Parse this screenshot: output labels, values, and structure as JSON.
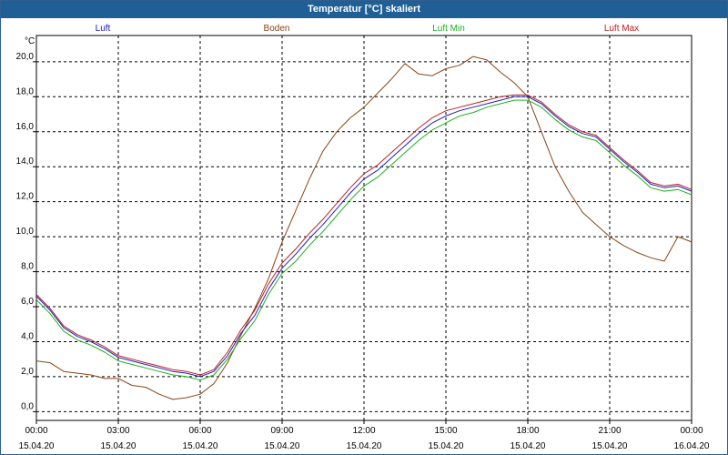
{
  "window": {
    "title": "Temperatur [°C] skaliert"
  },
  "chart_data": {
    "type": "line",
    "title": "Temperatur [°C] skaliert",
    "ylabel": "°C",
    "xlabel": "",
    "ylim": [
      -0.5,
      21.5
    ],
    "yticks": [
      0,
      2,
      4,
      6,
      8,
      10,
      12,
      14,
      16,
      18,
      20
    ],
    "ytick_labels": [
      "0,0",
      "2,0",
      "4,0",
      "6,0",
      "8,0",
      "10,0",
      "12,0",
      "14,0",
      "16,0",
      "18,0",
      "20,0"
    ],
    "xlim": [
      0,
      24
    ],
    "xticks": [
      0,
      3,
      6,
      9,
      12,
      15,
      18,
      21,
      24
    ],
    "xtick_labels": [
      [
        "00:00",
        "15.04.20"
      ],
      [
        "03:00",
        "15.04.20"
      ],
      [
        "06:00",
        "15.04.20"
      ],
      [
        "09:00",
        "15.04.20"
      ],
      [
        "12:00",
        "15.04.20"
      ],
      [
        "15:00",
        "15.04.20"
      ],
      [
        "18:00",
        "15.04.20"
      ],
      [
        "21:00",
        "15.04.20"
      ],
      [
        "00:00",
        "16.04.20"
      ]
    ],
    "grid": true,
    "legend": [
      {
        "name": "Luft",
        "color": "#2020c0"
      },
      {
        "name": "Boden",
        "color": "#8b4513"
      },
      {
        "name": "Luft Min",
        "color": "#20b020"
      },
      {
        "name": "Luft Max",
        "color": "#c02020"
      }
    ],
    "series": [
      {
        "name": "Luft",
        "color": "#2020c0",
        "points": [
          [
            0,
            6.6
          ],
          [
            0.5,
            5.8
          ],
          [
            1,
            4.8
          ],
          [
            1.5,
            4.3
          ],
          [
            2,
            4.0
          ],
          [
            2.5,
            3.6
          ],
          [
            3,
            3.1
          ],
          [
            3.5,
            2.9
          ],
          [
            4,
            2.7
          ],
          [
            4.5,
            2.5
          ],
          [
            5,
            2.3
          ],
          [
            5.5,
            2.2
          ],
          [
            6,
            2.0
          ],
          [
            6.5,
            2.3
          ],
          [
            7,
            3.2
          ],
          [
            7.5,
            4.5
          ],
          [
            8,
            5.5
          ],
          [
            8.5,
            7.0
          ],
          [
            9,
            8.2
          ],
          [
            9.5,
            9.0
          ],
          [
            10,
            9.9
          ],
          [
            10.5,
            10.7
          ],
          [
            11,
            11.6
          ],
          [
            11.5,
            12.5
          ],
          [
            12,
            13.3
          ],
          [
            12.5,
            13.8
          ],
          [
            13,
            14.5
          ],
          [
            13.5,
            15.2
          ],
          [
            14,
            15.9
          ],
          [
            14.5,
            16.5
          ],
          [
            15,
            16.9
          ],
          [
            15.5,
            17.2
          ],
          [
            16,
            17.4
          ],
          [
            16.5,
            17.6
          ],
          [
            17,
            17.8
          ],
          [
            17.5,
            18.0
          ],
          [
            18,
            18.0
          ],
          [
            18.5,
            17.6
          ],
          [
            19,
            16.9
          ],
          [
            19.5,
            16.3
          ],
          [
            20,
            15.9
          ],
          [
            20.5,
            15.7
          ],
          [
            21,
            15.0
          ],
          [
            21.5,
            14.3
          ],
          [
            22,
            13.7
          ],
          [
            22.5,
            13.0
          ],
          [
            23,
            12.8
          ],
          [
            23.5,
            12.9
          ],
          [
            24,
            12.6
          ]
        ]
      },
      {
        "name": "Boden",
        "color": "#8b4513",
        "points": [
          [
            0,
            2.9
          ],
          [
            0.5,
            2.8
          ],
          [
            1,
            2.3
          ],
          [
            1.5,
            2.2
          ],
          [
            2,
            2.1
          ],
          [
            2.5,
            1.9
          ],
          [
            3,
            1.9
          ],
          [
            3.5,
            1.5
          ],
          [
            4,
            1.4
          ],
          [
            4.5,
            1.0
          ],
          [
            5,
            0.7
          ],
          [
            5.5,
            0.8
          ],
          [
            6,
            1.0
          ],
          [
            6.5,
            1.6
          ],
          [
            7,
            2.8
          ],
          [
            7.5,
            4.4
          ],
          [
            8,
            5.9
          ],
          [
            8.5,
            7.6
          ],
          [
            9,
            9.7
          ],
          [
            9.5,
            11.5
          ],
          [
            10,
            13.3
          ],
          [
            10.5,
            14.9
          ],
          [
            11,
            16.0
          ],
          [
            11.5,
            16.8
          ],
          [
            12,
            17.4
          ],
          [
            12.5,
            18.2
          ],
          [
            13,
            19.0
          ],
          [
            13.5,
            19.9
          ],
          [
            14,
            19.3
          ],
          [
            14.5,
            19.2
          ],
          [
            15,
            19.6
          ],
          [
            15.5,
            19.8
          ],
          [
            16,
            20.3
          ],
          [
            16.5,
            20.1
          ],
          [
            17,
            19.4
          ],
          [
            17.5,
            18.8
          ],
          [
            18,
            18.0
          ],
          [
            18.5,
            16.0
          ],
          [
            19,
            14.0
          ],
          [
            19.5,
            12.6
          ],
          [
            20,
            11.4
          ],
          [
            20.5,
            10.7
          ],
          [
            21,
            10.0
          ],
          [
            21.5,
            9.5
          ],
          [
            22,
            9.1
          ],
          [
            22.5,
            8.8
          ],
          [
            23,
            8.6
          ],
          [
            23.5,
            10.0
          ],
          [
            24,
            9.7
          ]
        ]
      },
      {
        "name": "Luft Min",
        "color": "#20b020",
        "points": [
          [
            0,
            6.4
          ],
          [
            0.5,
            5.6
          ],
          [
            1,
            4.6
          ],
          [
            1.5,
            4.1
          ],
          [
            2,
            3.8
          ],
          [
            2.5,
            3.4
          ],
          [
            3,
            2.9
          ],
          [
            3.5,
            2.7
          ],
          [
            4,
            2.5
          ],
          [
            4.5,
            2.3
          ],
          [
            5,
            2.1
          ],
          [
            5.5,
            2.0
          ],
          [
            6,
            1.8
          ],
          [
            6.5,
            2.1
          ],
          [
            7,
            3.0
          ],
          [
            7.5,
            4.2
          ],
          [
            8,
            5.2
          ],
          [
            8.5,
            6.7
          ],
          [
            9,
            7.9
          ],
          [
            9.5,
            8.6
          ],
          [
            10,
            9.5
          ],
          [
            10.5,
            10.3
          ],
          [
            11,
            11.2
          ],
          [
            11.5,
            12.1
          ],
          [
            12,
            12.9
          ],
          [
            12.5,
            13.4
          ],
          [
            13,
            14.1
          ],
          [
            13.5,
            14.8
          ],
          [
            14,
            15.5
          ],
          [
            14.5,
            16.1
          ],
          [
            15,
            16.5
          ],
          [
            15.5,
            16.9
          ],
          [
            16,
            17.1
          ],
          [
            16.5,
            17.4
          ],
          [
            17,
            17.6
          ],
          [
            17.5,
            17.8
          ],
          [
            18,
            17.8
          ],
          [
            18.5,
            17.4
          ],
          [
            19,
            16.7
          ],
          [
            19.5,
            16.1
          ],
          [
            20,
            15.7
          ],
          [
            20.5,
            15.5
          ],
          [
            21,
            14.8
          ],
          [
            21.5,
            14.1
          ],
          [
            22,
            13.5
          ],
          [
            22.5,
            12.8
          ],
          [
            23,
            12.6
          ],
          [
            23.5,
            12.7
          ],
          [
            24,
            12.4
          ]
        ]
      },
      {
        "name": "Luft Max",
        "color": "#c02020",
        "points": [
          [
            0,
            6.7
          ],
          [
            0.5,
            5.9
          ],
          [
            1,
            4.9
          ],
          [
            1.5,
            4.4
          ],
          [
            2,
            4.1
          ],
          [
            2.5,
            3.7
          ],
          [
            3,
            3.2
          ],
          [
            3.5,
            3.0
          ],
          [
            4,
            2.8
          ],
          [
            4.5,
            2.6
          ],
          [
            5,
            2.4
          ],
          [
            5.5,
            2.3
          ],
          [
            6,
            2.1
          ],
          [
            6.5,
            2.4
          ],
          [
            7,
            3.4
          ],
          [
            7.5,
            4.7
          ],
          [
            8,
            5.8
          ],
          [
            8.5,
            7.3
          ],
          [
            9,
            8.5
          ],
          [
            9.5,
            9.3
          ],
          [
            10,
            10.2
          ],
          [
            10.5,
            11.0
          ],
          [
            11,
            11.9
          ],
          [
            11.5,
            12.8
          ],
          [
            12,
            13.6
          ],
          [
            12.5,
            14.1
          ],
          [
            13,
            14.8
          ],
          [
            13.5,
            15.5
          ],
          [
            14,
            16.2
          ],
          [
            14.5,
            16.8
          ],
          [
            15,
            17.2
          ],
          [
            15.5,
            17.4
          ],
          [
            16,
            17.6
          ],
          [
            16.5,
            17.8
          ],
          [
            17,
            18.0
          ],
          [
            17.5,
            18.1
          ],
          [
            18,
            18.1
          ],
          [
            18.5,
            17.7
          ],
          [
            19,
            17.0
          ],
          [
            19.5,
            16.4
          ],
          [
            20,
            16.0
          ],
          [
            20.5,
            15.8
          ],
          [
            21,
            15.1
          ],
          [
            21.5,
            14.4
          ],
          [
            22,
            13.8
          ],
          [
            22.5,
            13.1
          ],
          [
            23,
            12.9
          ],
          [
            23.5,
            13.0
          ],
          [
            24,
            12.7
          ]
        ]
      }
    ]
  }
}
